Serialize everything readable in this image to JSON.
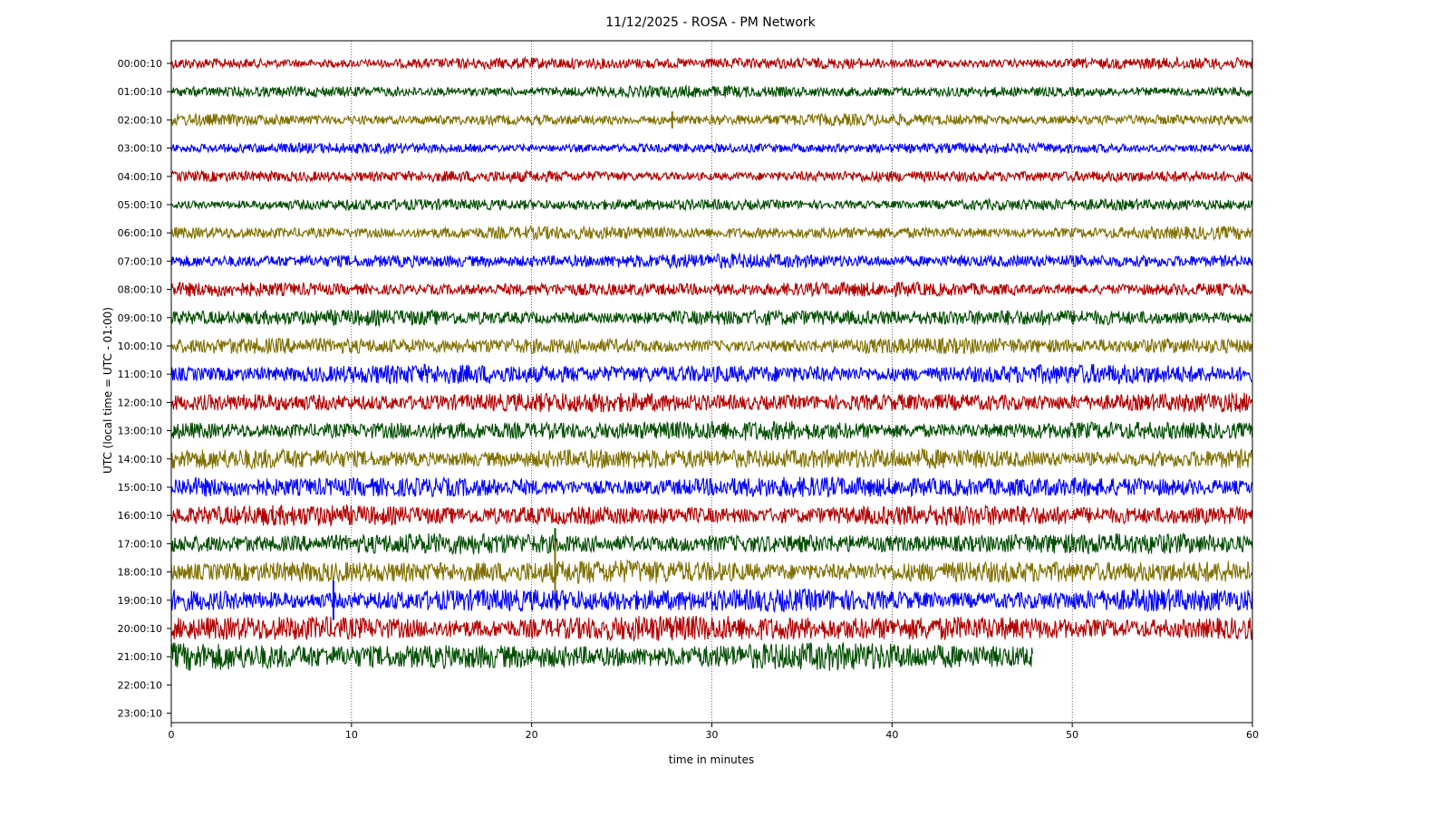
{
  "chart_data": {
    "type": "line",
    "title": "11/12/2025 - ROSA - PM Network",
    "xlabel": "time in minutes",
    "ylabel": "UTC (local time = UTC - 01:00)",
    "xlim": [
      0,
      60
    ],
    "xticks": [
      0,
      10,
      20,
      30,
      40,
      50,
      60
    ],
    "grid": "vertical dotted lines at x ticks",
    "color_cycle": [
      "#b20000",
      "#004d00",
      "#807000",
      "#0000ff"
    ],
    "series": [
      {
        "label": "00:00:10",
        "end_minute": 60,
        "amplitude": 0.18
      },
      {
        "label": "01:00:10",
        "end_minute": 60,
        "amplitude": 0.18
      },
      {
        "label": "02:00:10",
        "end_minute": 60,
        "amplitude": 0.18
      },
      {
        "label": "03:00:10",
        "end_minute": 60,
        "amplitude": 0.16
      },
      {
        "label": "04:00:10",
        "end_minute": 60,
        "amplitude": 0.18
      },
      {
        "label": "05:00:10",
        "end_minute": 60,
        "amplitude": 0.18
      },
      {
        "label": "06:00:10",
        "end_minute": 60,
        "amplitude": 0.2
      },
      {
        "label": "07:00:10",
        "end_minute": 60,
        "amplitude": 0.22
      },
      {
        "label": "08:00:10",
        "end_minute": 60,
        "amplitude": 0.22
      },
      {
        "label": "09:00:10",
        "end_minute": 60,
        "amplitude": 0.25
      },
      {
        "label": "10:00:10",
        "end_minute": 60,
        "amplitude": 0.25
      },
      {
        "label": "11:00:10",
        "end_minute": 60,
        "amplitude": 0.3
      },
      {
        "label": "12:00:10",
        "end_minute": 60,
        "amplitude": 0.3
      },
      {
        "label": "13:00:10",
        "end_minute": 60,
        "amplitude": 0.3
      },
      {
        "label": "14:00:10",
        "end_minute": 60,
        "amplitude": 0.32
      },
      {
        "label": "15:00:10",
        "end_minute": 60,
        "amplitude": 0.32
      },
      {
        "label": "16:00:10",
        "end_minute": 60,
        "amplitude": 0.32
      },
      {
        "label": "17:00:10",
        "end_minute": 60,
        "amplitude": 0.32
      },
      {
        "label": "18:00:10",
        "end_minute": 60,
        "amplitude": 0.36
      },
      {
        "label": "19:00:10",
        "end_minute": 60,
        "amplitude": 0.36
      },
      {
        "label": "20:00:10",
        "end_minute": 60,
        "amplitude": 0.4
      },
      {
        "label": "21:00:10",
        "end_minute": 47.8,
        "amplitude": 0.42
      },
      {
        "label": "22:00:10",
        "end_minute": 0,
        "amplitude": 0
      },
      {
        "label": "23:00:10",
        "end_minute": 0,
        "amplitude": 0
      }
    ],
    "events": [
      {
        "series": "17:00:10",
        "minute": 21.3,
        "amplitude": 0.55
      },
      {
        "series": "18:00:10",
        "minute": 21.3,
        "amplitude": 1.1
      },
      {
        "series": "19:00:10",
        "minute": 9.0,
        "amplitude": 0.7
      },
      {
        "series": "02:00:10",
        "minute": 27.8,
        "amplitude": 0.3
      }
    ]
  }
}
